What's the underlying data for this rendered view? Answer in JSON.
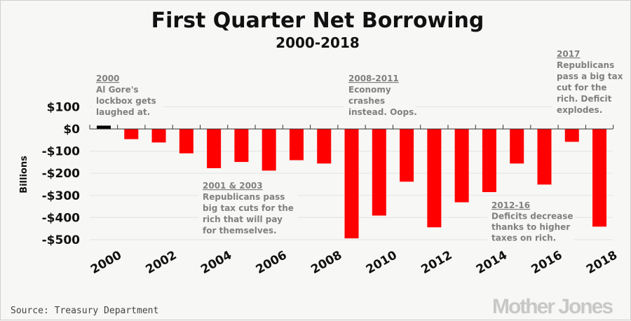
{
  "chart_data": {
    "type": "bar",
    "title": "First Quarter Net Borrowing",
    "subtitle": "2000-2018",
    "ylabel": "Billions",
    "xlabel": "",
    "ylim": [
      -500,
      100
    ],
    "yticks": [
      100,
      0,
      -100,
      -200,
      -300,
      -400,
      -500
    ],
    "ytick_labels": [
      "$100",
      "$0",
      "-$100",
      "-$200",
      "-$300",
      "-$400",
      "-$500"
    ],
    "grid": true,
    "categories": [
      "2000",
      "2001",
      "2002",
      "2003",
      "2004",
      "2005",
      "2006",
      "2007",
      "2008",
      "2009",
      "2010",
      "2011",
      "2012",
      "2013",
      "2014",
      "2015",
      "2016",
      "2017",
      "2018"
    ],
    "xtick_labels": [
      "2000",
      "2002",
      "2004",
      "2006",
      "2008",
      "2010",
      "2012",
      "2014",
      "2016",
      "2018"
    ],
    "values": [
      15,
      -46,
      -61,
      -110,
      -177,
      -149,
      -188,
      -141,
      -156,
      -494,
      -391,
      -238,
      -444,
      -331,
      -285,
      -156,
      -251,
      -58,
      -441
    ],
    "colors": {
      "positive": "#000000",
      "negative": "#ff0000"
    },
    "annotations": [
      {
        "heading": "2000",
        "lines": [
          "Al Gore's",
          "lockbox gets",
          "laughed at."
        ]
      },
      {
        "heading": "2001 & 2003",
        "lines": [
          "Republicans pass",
          "big tax cuts for the",
          "rich that will pay",
          "for themselves."
        ]
      },
      {
        "heading": "2008-2011",
        "lines": [
          "Economy",
          "crashes",
          "instead. Oops."
        ]
      },
      {
        "heading": "2012-16",
        "lines": [
          "Deficits decrease",
          "thanks to higher",
          "taxes on rich."
        ]
      },
      {
        "heading": "2017",
        "lines": [
          "Republicans",
          "pass a big tax",
          "cut for the",
          "rich. Deficit",
          "explodes."
        ]
      }
    ]
  },
  "source": "Source: Treasury Department",
  "logo": "Mother Jones"
}
